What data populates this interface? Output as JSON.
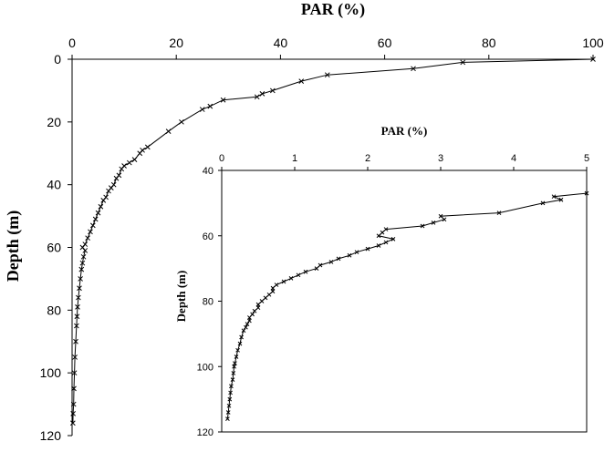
{
  "chart_data": [
    {
      "type": "line",
      "xlabel": "PAR (%)",
      "ylabel": "Depth (m)",
      "x_axis_position": "top",
      "y_inverted": true,
      "xlim": [
        0,
        100
      ],
      "ylim": [
        0,
        120
      ],
      "xticks": [
        0,
        20,
        40,
        60,
        80,
        100
      ],
      "yticks": [
        0,
        20,
        40,
        60,
        80,
        100,
        120
      ],
      "xtick_labels": [
        "0",
        "20",
        "40",
        "60",
        "80",
        "100"
      ],
      "ytick_labels": [
        "0",
        "20",
        "40",
        "60",
        "80",
        "100",
        "120"
      ],
      "marker": "x",
      "line_color": "#000000",
      "grid": false,
      "series": [
        {
          "points": [
            [
              100,
              0
            ],
            [
              75,
              1
            ],
            [
              65.5,
              3
            ],
            [
              49,
              5
            ],
            [
              44,
              7
            ],
            [
              38.5,
              10
            ],
            [
              36.5,
              11
            ],
            [
              35.5,
              12
            ],
            [
              29,
              13
            ],
            [
              26.5,
              15
            ],
            [
              25,
              16
            ],
            [
              21,
              20
            ],
            [
              18.5,
              23
            ],
            [
              14.5,
              28
            ],
            [
              13.5,
              29
            ],
            [
              13,
              30
            ],
            [
              12,
              32
            ],
            [
              11,
              33
            ],
            [
              10,
              34
            ],
            [
              9.5,
              35
            ],
            [
              9,
              37
            ],
            [
              8.5,
              38
            ],
            [
              8,
              40
            ],
            [
              7.5,
              41
            ],
            [
              7,
              42
            ],
            [
              6.5,
              44
            ],
            [
              6,
              45
            ],
            [
              5.5,
              47
            ],
            [
              5,
              49
            ],
            [
              4.5,
              51
            ],
            [
              4,
              53
            ],
            [
              3.5,
              55
            ],
            [
              3,
              57
            ],
            [
              2.5,
              59
            ],
            [
              2,
              60
            ],
            [
              2.5,
              61
            ],
            [
              2.2,
              63
            ],
            [
              2,
              65
            ],
            [
              1.8,
              67
            ],
            [
              1.6,
              70
            ],
            [
              1.4,
              73
            ],
            [
              1.2,
              76
            ],
            [
              1.05,
              79
            ],
            [
              0.95,
              82
            ],
            [
              0.85,
              85
            ],
            [
              0.7,
              90
            ],
            [
              0.55,
              95
            ],
            [
              0.45,
              100
            ],
            [
              0.35,
              105
            ],
            [
              0.3,
              110
            ],
            [
              0.2,
              113
            ],
            [
              0.15,
              116
            ]
          ]
        }
      ]
    },
    {
      "type": "line",
      "xlabel": "PAR (%)",
      "ylabel": "Depth (m)",
      "x_axis_position": "top",
      "y_inverted": true,
      "xlim": [
        0,
        5
      ],
      "ylim": [
        40,
        120
      ],
      "xticks": [
        0,
        1,
        2,
        3,
        4,
        5
      ],
      "yticks": [
        40,
        60,
        80,
        100,
        120
      ],
      "xtick_labels": [
        "0",
        "1",
        "2",
        "3",
        "4",
        "5"
      ],
      "ytick_labels": [
        "40",
        "60",
        "80",
        "100",
        "120"
      ],
      "marker": "x",
      "line_color": "#000000",
      "grid": false,
      "series": [
        {
          "points": [
            [
              5.0,
              47
            ],
            [
              4.55,
              48
            ],
            [
              4.65,
              49
            ],
            [
              4.4,
              50
            ],
            [
              3.8,
              53
            ],
            [
              3.0,
              54
            ],
            [
              3.05,
              55
            ],
            [
              2.9,
              56
            ],
            [
              2.75,
              57
            ],
            [
              2.25,
              58
            ],
            [
              2.2,
              59
            ],
            [
              2.15,
              60
            ],
            [
              2.35,
              61
            ],
            [
              2.25,
              62
            ],
            [
              2.15,
              63
            ],
            [
              2.0,
              64
            ],
            [
              1.85,
              65
            ],
            [
              1.75,
              66
            ],
            [
              1.6,
              67
            ],
            [
              1.5,
              68
            ],
            [
              1.35,
              69
            ],
            [
              1.3,
              70
            ],
            [
              1.15,
              71
            ],
            [
              1.05,
              72
            ],
            [
              0.95,
              73
            ],
            [
              0.85,
              74
            ],
            [
              0.75,
              75
            ],
            [
              0.7,
              76
            ],
            [
              0.7,
              77
            ],
            [
              0.65,
              78
            ],
            [
              0.6,
              79
            ],
            [
              0.55,
              80
            ],
            [
              0.5,
              81
            ],
            [
              0.5,
              82
            ],
            [
              0.45,
              83
            ],
            [
              0.42,
              84
            ],
            [
              0.38,
              85
            ],
            [
              0.38,
              86
            ],
            [
              0.35,
              87
            ],
            [
              0.33,
              88
            ],
            [
              0.3,
              89
            ],
            [
              0.27,
              91
            ],
            [
              0.25,
              93
            ],
            [
              0.22,
              95
            ],
            [
              0.2,
              97
            ],
            [
              0.18,
              99
            ],
            [
              0.17,
              100
            ],
            [
              0.16,
              102
            ],
            [
              0.15,
              104
            ],
            [
              0.13,
              106
            ],
            [
              0.12,
              108
            ],
            [
              0.11,
              110
            ],
            [
              0.1,
              112
            ],
            [
              0.09,
              114
            ],
            [
              0.08,
              116
            ]
          ]
        }
      ]
    }
  ]
}
